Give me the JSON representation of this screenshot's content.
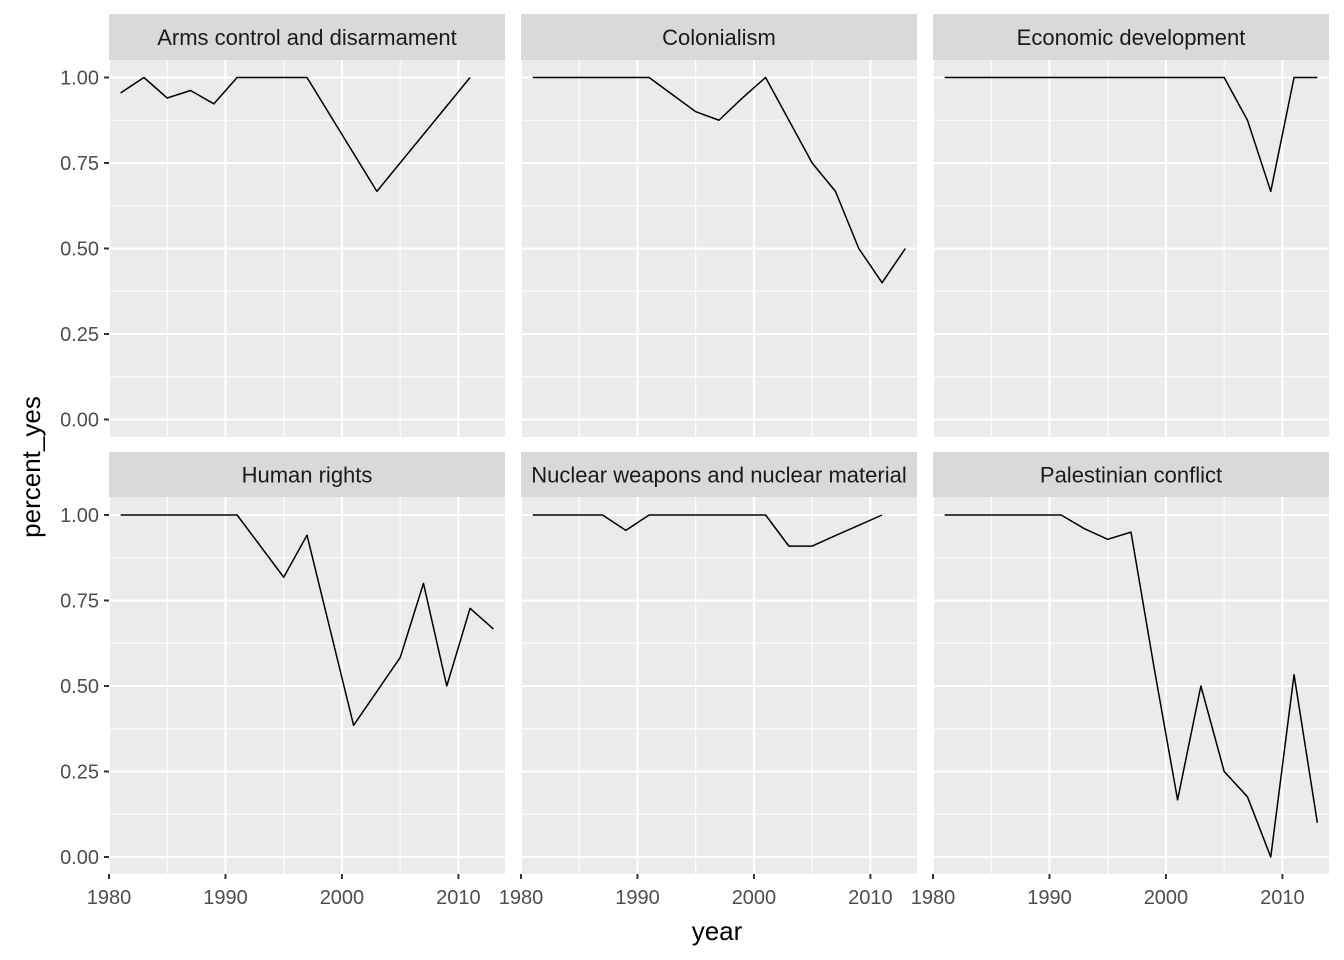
{
  "chart_data": {
    "type": "line",
    "xlabel": "year",
    "ylabel": "percent_yes",
    "xlim": [
      1980,
      2014
    ],
    "ylim": [
      0,
      1.1
    ],
    "x_ticks": [
      1980,
      1990,
      2000,
      2010
    ],
    "x_tick_labels": [
      "1980",
      "1990",
      "2000",
      "2010"
    ],
    "y_ticks": [
      0,
      0.25,
      0.5,
      0.75,
      1.0
    ],
    "y_tick_labels": [
      "0.00",
      "0.25",
      "0.50",
      "0.75",
      "1.00"
    ],
    "grid": true,
    "line_color": "#000000",
    "panel_background": "#ebebeb",
    "strip_background": "#d9d9d9",
    "facets": [
      {
        "title": "Arms control and disarmament",
        "x": [
          1981,
          1983,
          1985,
          1987,
          1989,
          1991,
          1993,
          1995,
          1997,
          2003,
          2011
        ],
        "y": [
          0.955,
          1.0,
          0.94,
          0.962,
          0.923,
          1.0,
          1.0,
          1.0,
          1.0,
          0.667,
          1.0
        ]
      },
      {
        "title": "Colonialism",
        "x": [
          1981,
          1983,
          1985,
          1987,
          1989,
          1991,
          1993,
          1995,
          1997,
          1999,
          2001,
          2003,
          2005,
          2007,
          2009,
          2011,
          2013
        ],
        "y": [
          1.0,
          1.0,
          1.0,
          1.0,
          1.0,
          1.0,
          0.95,
          0.9,
          0.875,
          0.94,
          1.0,
          0.875,
          0.75,
          0.667,
          0.5,
          0.4,
          0.5
        ]
      },
      {
        "title": "Economic development",
        "x": [
          1981,
          1985,
          1990,
          1995,
          2000,
          2005,
          2007,
          2009,
          2011,
          2013
        ],
        "y": [
          1.0,
          1.0,
          1.0,
          1.0,
          1.0,
          1.0,
          0.875,
          0.667,
          1.0,
          1.0
        ]
      },
      {
        "title": "Human rights",
        "x": [
          1981,
          1985,
          1991,
          1995,
          1997,
          2001,
          2005,
          2007,
          2009,
          2011,
          2013
        ],
        "y": [
          1.0,
          1.0,
          1.0,
          0.818,
          0.941,
          0.385,
          0.583,
          0.8,
          0.5,
          0.727,
          0.667
        ]
      },
      {
        "title": "Nuclear weapons and nuclear material",
        "x": [
          1981,
          1983,
          1985,
          1987,
          1989,
          1991,
          1993,
          1995,
          1997,
          1999,
          2001,
          2003,
          2005,
          2007,
          2009,
          2011
        ],
        "y": [
          1.0,
          1.0,
          1.0,
          1.0,
          0.955,
          1.0,
          1.0,
          1.0,
          1.0,
          1.0,
          1.0,
          0.909,
          0.909,
          0.94,
          0.97,
          1.0
        ]
      },
      {
        "title": "Palestinian conflict",
        "x": [
          1981,
          1985,
          1989,
          1991,
          1993,
          1995,
          1997,
          1999,
          2001,
          2003,
          2005,
          2007,
          2009,
          2011,
          2013
        ],
        "y": [
          1.0,
          1.0,
          1.0,
          1.0,
          0.96,
          0.929,
          0.95,
          0.55,
          0.167,
          0.5,
          0.25,
          0.176,
          0.0,
          0.533,
          0.1
        ]
      }
    ]
  }
}
